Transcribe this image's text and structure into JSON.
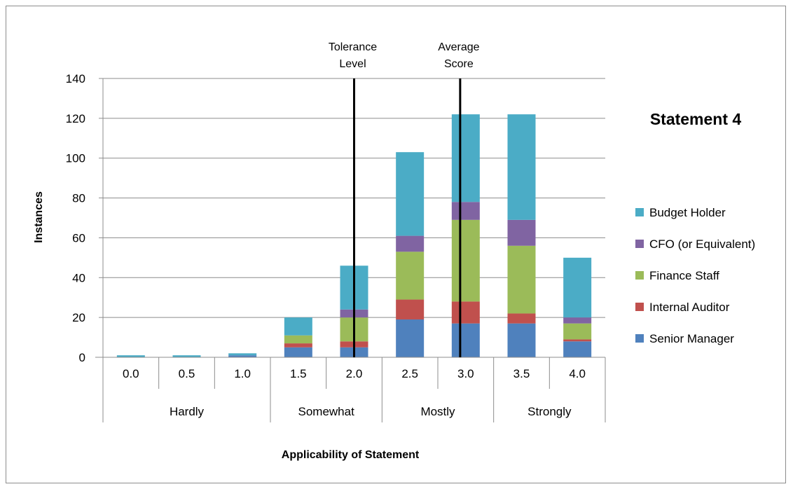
{
  "chart_data": {
    "type": "bar",
    "stacked": true,
    "title": "Statement 4",
    "xlabel": "Applicability of Statement",
    "ylabel": "Instances",
    "ylim": [
      0,
      140
    ],
    "yticks": [
      0,
      20,
      40,
      60,
      80,
      100,
      120,
      140
    ],
    "grid": true,
    "legend_position": "right",
    "categories": [
      "0.0",
      "0.5",
      "1.0",
      "1.5",
      "2.0",
      "2.5",
      "3.0",
      "3.5",
      "4.0"
    ],
    "groups": [
      {
        "label": "Hardly",
        "span": 3
      },
      {
        "label": "Somewhat",
        "span": 2
      },
      {
        "label": "Mostly",
        "span": 2
      },
      {
        "label": "Strongly",
        "span": 2
      }
    ],
    "series": [
      {
        "name": "Senior Manager",
        "color": "#4f81bd",
        "values": [
          0,
          0,
          1,
          5,
          5,
          19,
          17,
          17,
          8
        ]
      },
      {
        "name": "Internal Auditor",
        "color": "#c0504d",
        "values": [
          0,
          0,
          0,
          2,
          3,
          10,
          11,
          5,
          1
        ]
      },
      {
        "name": "Finance Staff",
        "color": "#9bbb59",
        "values": [
          0,
          0,
          0,
          4,
          12,
          24,
          41,
          34,
          8
        ]
      },
      {
        "name": "CFO (or Equivalent)",
        "color": "#8064a2",
        "values": [
          0,
          0,
          0,
          0,
          4,
          8,
          9,
          13,
          3
        ]
      },
      {
        "name": "Budget Holder",
        "color": "#4bacc6",
        "values": [
          1,
          1,
          1,
          9,
          22,
          42,
          44,
          53,
          30
        ]
      }
    ],
    "annotations": [
      {
        "text_lines": [
          "Tolerance",
          "Level"
        ],
        "x_value": 2.0
      },
      {
        "text_lines": [
          "Average",
          "Score"
        ],
        "x_value": 2.95
      }
    ]
  }
}
